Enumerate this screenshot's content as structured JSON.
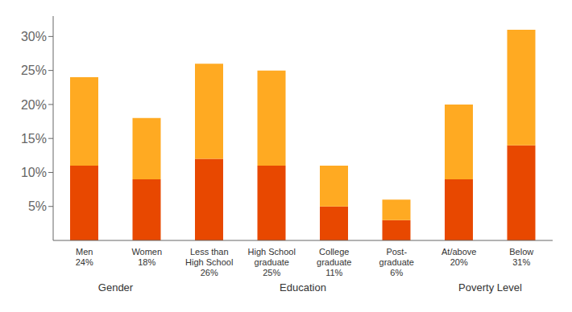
{
  "chart_data": {
    "type": "bar",
    "stacked": true,
    "categories": [
      "Men\n24%",
      "Women\n18%",
      "Less than\nHigh School\n26%",
      "High School\ngraduate\n25%",
      "College\ngraduate\n11%",
      "Post-\ngraduate\n6%",
      "At/above\n20%",
      "Below\n31%"
    ],
    "series": [
      {
        "color": "#E84800",
        "values": [
          11,
          9,
          12,
          11,
          5,
          3,
          9,
          14
        ]
      },
      {
        "color": "#FFAA22",
        "values": [
          13,
          9,
          14,
          14,
          6,
          3,
          11,
          17
        ]
      }
    ],
    "ylim": [
      0,
      33
    ],
    "yticks": [
      {
        "value": 5,
        "label": "5%"
      },
      {
        "value": 10,
        "label": "10%"
      },
      {
        "value": 15,
        "label": "15%"
      },
      {
        "value": 20,
        "label": "20%"
      },
      {
        "value": 25,
        "label": "25%"
      },
      {
        "value": 30,
        "label": "30%"
      }
    ],
    "grid": false,
    "annotations": [
      {
        "text": "Gender",
        "categories": [
          "Men\n24%",
          "Women\n18%"
        ]
      },
      {
        "text": "Education",
        "categories": [
          "Less than\nHigh School\n26%",
          "High School\ngraduate\n25%",
          "College\ngraduate\n11%",
          "Post-\ngraduate\n6%"
        ]
      },
      {
        "text": "Poverty Level",
        "categories": [
          "At/above\n20%",
          "Below\n31%"
        ]
      }
    ]
  }
}
